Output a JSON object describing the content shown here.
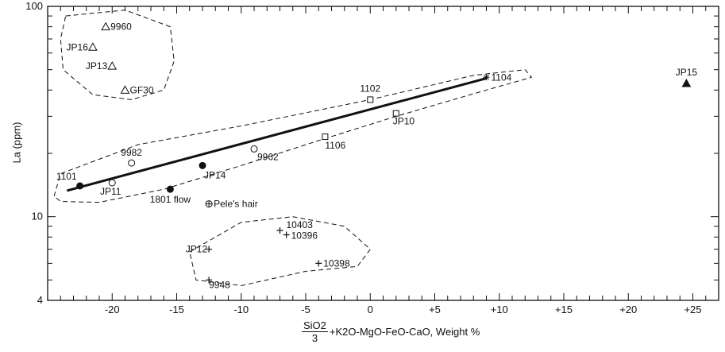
{
  "chart_data": {
    "type": "scatter",
    "title": "",
    "xlabel": {
      "fraction_numerator": "SiO2",
      "fraction_denominator": "3",
      "rest": "+K2O-MgO-FeO-CaO, Weight %"
    },
    "ylabel": "La (ppm)",
    "yscale": "log",
    "xlim": [
      -25,
      27
    ],
    "ylim": [
      4,
      100
    ],
    "x_ticks": [
      {
        "value": -20,
        "label": "-20"
      },
      {
        "value": -15,
        "label": "-15"
      },
      {
        "value": -10,
        "label": "-10"
      },
      {
        "value": -5,
        "label": "-5"
      },
      {
        "value": 0,
        "label": "0"
      },
      {
        "value": 5,
        "label": "+5"
      },
      {
        "value": 10,
        "label": "+10"
      },
      {
        "value": 15,
        "label": "+15"
      },
      {
        "value": 20,
        "label": "+20"
      },
      {
        "value": 25,
        "label": "+25"
      }
    ],
    "y_ticks": [
      {
        "value": 100,
        "label": "100"
      },
      {
        "value": 10,
        "label": "10"
      },
      {
        "value": 4,
        "label": "4"
      }
    ],
    "points": [
      {
        "label": "9960",
        "x": -20.5,
        "y": 80,
        "marker": "triangle-open"
      },
      {
        "label": "JP16",
        "x": -21.5,
        "y": 64,
        "marker": "triangle-open"
      },
      {
        "label": "JP13",
        "x": -20.0,
        "y": 52,
        "marker": "triangle-open"
      },
      {
        "label": "GF30",
        "x": -19.0,
        "y": 40,
        "marker": "triangle-open"
      },
      {
        "label": "1101",
        "x": -22.5,
        "y": 14,
        "marker": "circle-filled"
      },
      {
        "label": "JP11",
        "x": -20.0,
        "y": 14.5,
        "marker": "circle-open"
      },
      {
        "label": "9982",
        "x": -18.5,
        "y": 18,
        "marker": "circle-open"
      },
      {
        "label": "1801 flow",
        "x": -15.5,
        "y": 13.5,
        "marker": "circle-filled"
      },
      {
        "label": "JP14",
        "x": -13.0,
        "y": 17.5,
        "marker": "circle-filled"
      },
      {
        "label": "9962",
        "x": -9.0,
        "y": 21,
        "marker": "circle-open"
      },
      {
        "label": "Pele's hair",
        "x": -12.5,
        "y": 11.5,
        "marker": "circle-cross"
      },
      {
        "label": "1106",
        "x": -3.5,
        "y": 24,
        "marker": "square-open"
      },
      {
        "label": "1102",
        "x": 0,
        "y": 36,
        "marker": "square-open"
      },
      {
        "label": "JP10",
        "x": 2.0,
        "y": 31,
        "marker": "square-open"
      },
      {
        "label": "1104",
        "x": 9.0,
        "y": 46,
        "marker": "star"
      },
      {
        "label": "JP15",
        "x": 24.5,
        "y": 43,
        "marker": "triangle-filled"
      },
      {
        "label": "10403",
        "x": -7.0,
        "y": 8.6,
        "marker": "plus"
      },
      {
        "label": "10396",
        "x": -6.5,
        "y": 8.2,
        "marker": "plus"
      },
      {
        "label": "JP12",
        "x": -12.5,
        "y": 7.0,
        "marker": "plus"
      },
      {
        "label": "10398",
        "x": -4.0,
        "y": 6.0,
        "marker": "plus"
      },
      {
        "label": "9948",
        "x": -12.5,
        "y": 5.0,
        "marker": "plus"
      }
    ],
    "trend_line": {
      "x": [
        -23.5,
        9.0
      ],
      "y": [
        13.3,
        45.5
      ]
    },
    "grid": false,
    "legend": "none"
  }
}
